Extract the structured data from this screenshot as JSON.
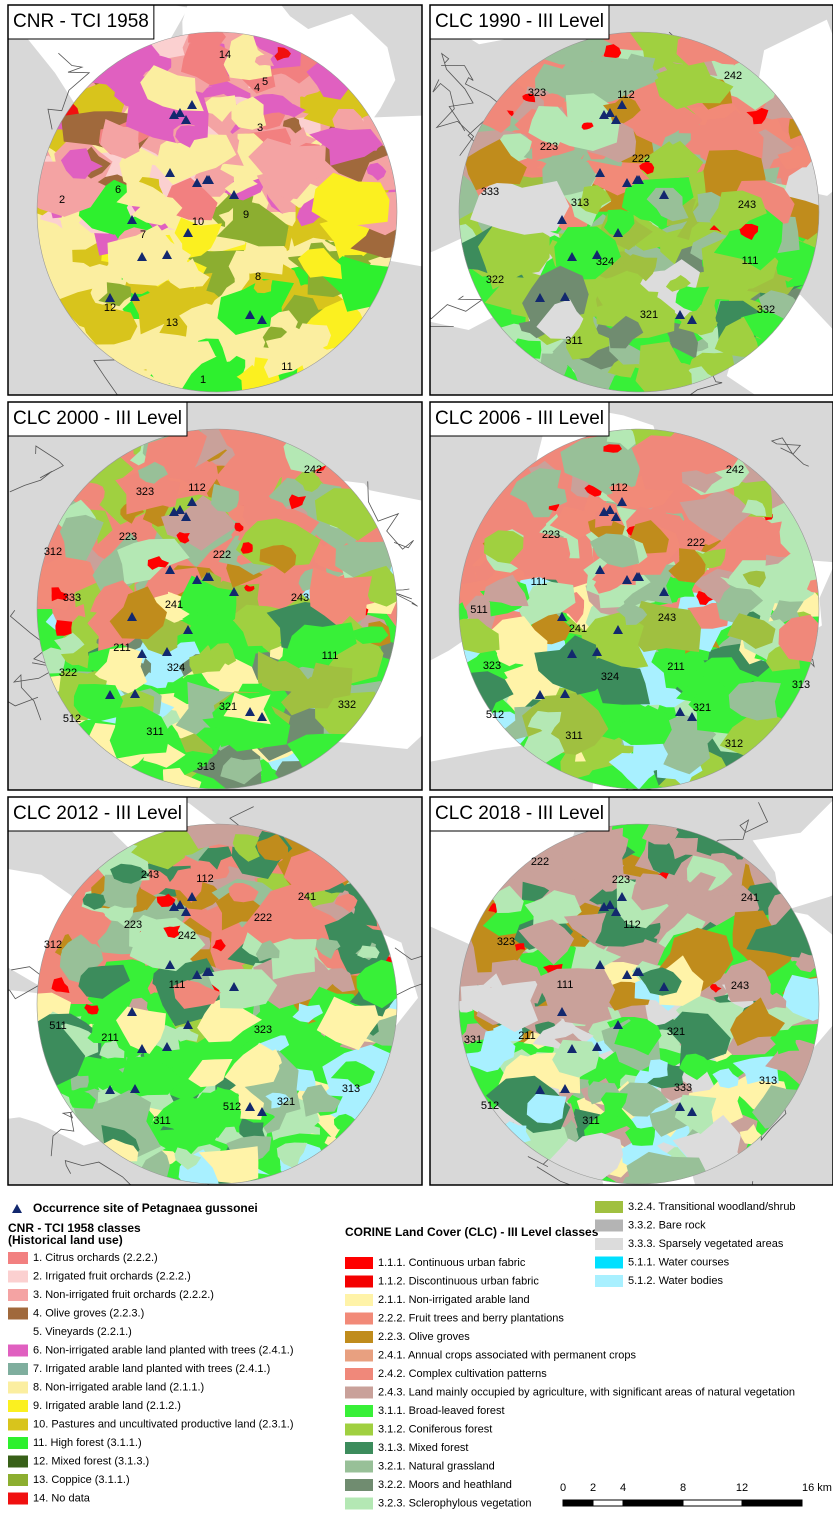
{
  "panels": [
    {
      "title": "CNR - TCI 1958",
      "labels": [
        "14",
        "5",
        "4",
        "3",
        "6",
        "2",
        "10",
        "9",
        "7",
        "8",
        "12",
        "13",
        "11",
        "1"
      ]
    },
    {
      "title": "CLC 1990 - III Level",
      "labels": [
        "242",
        "323",
        "112",
        "223",
        "222",
        "333",
        "313",
        "243",
        "111",
        "324",
        "322",
        "332",
        "321",
        "311"
      ]
    },
    {
      "title": "CLC 2000 - III Level",
      "labels": [
        "242",
        "323",
        "112",
        "223",
        "312",
        "222",
        "333",
        "241",
        "243",
        "211",
        "322",
        "324",
        "111",
        "332",
        "321",
        "311",
        "512",
        "313"
      ]
    },
    {
      "title": "CLC 2006 - III Level",
      "labels": [
        "242",
        "112",
        "223",
        "222",
        "111",
        "511",
        "243",
        "241",
        "211",
        "323",
        "324",
        "313",
        "512",
        "321",
        "311",
        "312"
      ]
    },
    {
      "title": "CLC 2012 - III Level",
      "labels": [
        "243",
        "112",
        "241",
        "223",
        "222",
        "242",
        "312",
        "111",
        "511",
        "323",
        "211",
        "313",
        "321",
        "512",
        "311"
      ]
    },
    {
      "title": "CLC 2018 - III Level",
      "labels": [
        "222",
        "223",
        "241",
        "112",
        "323",
        "243",
        "111",
        "331",
        "211",
        "321",
        "313",
        "333",
        "512",
        "311"
      ]
    }
  ],
  "legend": {
    "occurrence": "Occurrence site of Petagnaea gussonei",
    "cnr": {
      "title": "CNR - TCI 1958 classes",
      "subtitle": "(Historical land use)",
      "items": [
        {
          "label": "1. Citrus orchards (2.2.2.)",
          "color": "#f28080"
        },
        {
          "label": "2. Irrigated fruit orchards (2.2.2.)",
          "color": "#fbd0d0"
        },
        {
          "label": "3. Non-irrigated fruit orchards (2.2.2.)",
          "color": "#f4a3a3"
        },
        {
          "label": "4. Olive groves (2.2.3.)",
          "color": "#a0693c"
        },
        {
          "label": "5. Vineyards (2.2.1.)",
          "color": "#ffffff"
        },
        {
          "label": "6. Non-irrigated arable land planted with trees (2.4.1.)",
          "color": "#e060c0"
        },
        {
          "label": "7. Irrigated arable land planted with trees (2.4.1.)",
          "color": "#7fae9e"
        },
        {
          "label": "8. Non-irrigated arable land (2.1.1.)",
          "color": "#fbeea0"
        },
        {
          "label": "9. Irrigated arable land (2.1.2.)",
          "color": "#fbf020"
        },
        {
          "label": "10. Pastures and uncultivated productive land (2.3.1.)",
          "color": "#d8c41c"
        },
        {
          "label": "11. High forest (3.1.1.)",
          "color": "#2ef02e"
        },
        {
          "label": "12. Mixed forest (3.1.3.)",
          "color": "#386018"
        },
        {
          "label": "13. Coppice (3.1.1.)",
          "color": "#8cae30"
        },
        {
          "label": "14. No data",
          "color": "#f01010"
        }
      ]
    },
    "clc": {
      "title": "CORINE Land Cover (CLC) - III Level classes",
      "items": [
        {
          "label": "1.1.1. Continuous urban fabric",
          "color": "#ff0000"
        },
        {
          "label": "1.1.2. Discontinuous urban fabric",
          "color": "#f40000"
        },
        {
          "label": "2.1.1. Non-irrigated arable land",
          "color": "#fff3a8"
        },
        {
          "label": "2.2.2. Fruit trees and berry plantations",
          "color": "#f28a78"
        },
        {
          "label": "2.2.3. Olive groves",
          "color": "#c08c1c"
        },
        {
          "label": "2.4.1. Annual crops associated with permanent crops",
          "color": "#e8a080"
        },
        {
          "label": "2.4.2. Complex cultivation patterns",
          "color": "#f0887a"
        },
        {
          "label": "2.4.3. Land mainly occupied by agriculture, with significant areas of natural vegetation",
          "color": "#c9a19a"
        },
        {
          "label": "3.1.1. Broad-leaved forest",
          "color": "#38f038"
        },
        {
          "label": "3.1.2. Coniferous forest",
          "color": "#a0d040"
        },
        {
          "label": "3.1.3. Mixed forest",
          "color": "#3c8c5c"
        },
        {
          "label": "3.2.1. Natural grassland",
          "color": "#98c098"
        },
        {
          "label": "3.2.2. Moors and heathland",
          "color": "#708c70"
        },
        {
          "label": "3.2.3. Sclerophylous vegetation",
          "color": "#b4e8b4"
        },
        {
          "label": "3.2.4. Transitional woodland/shrub",
          "color": "#a0c040"
        },
        {
          "label": "3.3.2. Bare rock",
          "color": "#b4b4b4"
        },
        {
          "label": "3.3.3. Sparsely vegetated areas",
          "color": "#dcdcdc"
        },
        {
          "label": "5.1.1. Water courses",
          "color": "#00e0ff"
        },
        {
          "label": "5.1.2. Water bodies",
          "color": "#a8f0ff"
        }
      ]
    }
  },
  "scalebar": {
    "labels": [
      "0",
      "2",
      "4",
      "8",
      "12",
      "16 km"
    ]
  }
}
